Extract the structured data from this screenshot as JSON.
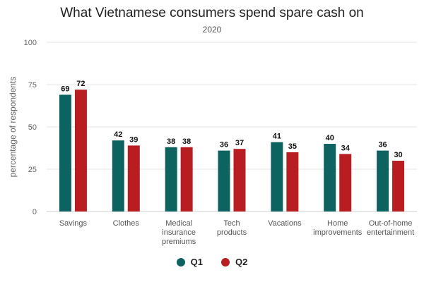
{
  "chart_data": {
    "type": "bar",
    "title": "What Vietnamese consumers spend spare cash on",
    "subtitle": "2020",
    "xlabel": "",
    "ylabel": "percentage of respondents",
    "ylim": [
      0,
      100
    ],
    "yticks": [
      0,
      25,
      50,
      75,
      100
    ],
    "grid": true,
    "legend_position": "bottom",
    "categories": [
      [
        "Savings"
      ],
      [
        "Clothes"
      ],
      [
        "Medical",
        "insurance",
        "premiums"
      ],
      [
        "Tech",
        "products"
      ],
      [
        "Vacations"
      ],
      [
        "Home",
        "improvements"
      ],
      [
        "Out-of-home",
        "entertainment"
      ]
    ],
    "series": [
      {
        "name": "Q1",
        "color": "#0d6360",
        "values": [
          69,
          42,
          38,
          36,
          41,
          40,
          36
        ]
      },
      {
        "name": "Q2",
        "color": "#b81d22",
        "values": [
          72,
          39,
          38,
          37,
          35,
          34,
          30
        ]
      }
    ]
  }
}
